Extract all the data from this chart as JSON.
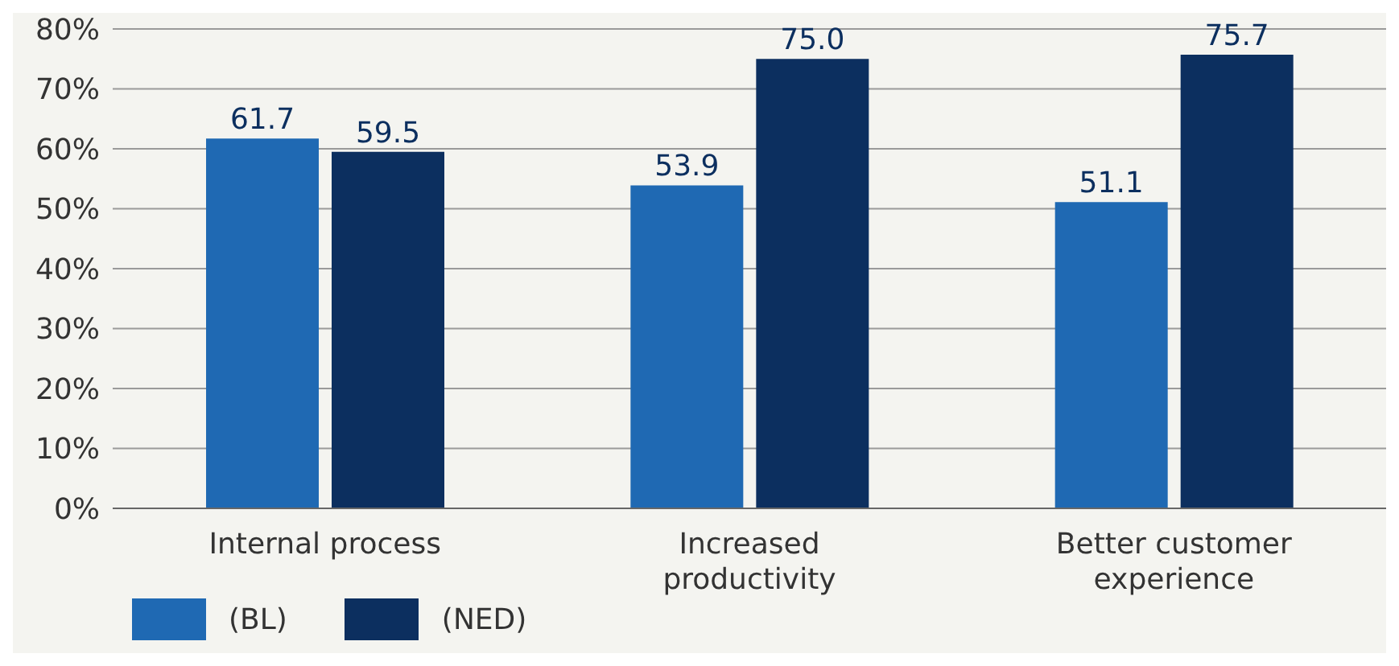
{
  "chart_data": {
    "type": "bar",
    "categories": [
      "Internal process",
      "Increased productivity",
      "Better customer experience"
    ],
    "series": [
      {
        "name": "(BL)",
        "color": "#1f69b3",
        "values": [
          61.7,
          53.9,
          51.1
        ]
      },
      {
        "name": "(NED)",
        "color": "#0c2f5f",
        "values": [
          59.5,
          75.0,
          75.7
        ]
      }
    ],
    "value_labels": [
      [
        "61.7",
        "53.9",
        "51.1"
      ],
      [
        "59.5",
        "75.0",
        "75.7"
      ]
    ],
    "ylim": [
      0,
      80
    ],
    "yticks": [
      {
        "value": 0,
        "label": "0%"
      },
      {
        "value": 10,
        "label": "10%"
      },
      {
        "value": 20,
        "label": "20%"
      },
      {
        "value": 30,
        "label": "30%"
      },
      {
        "value": 40,
        "label": "40%"
      },
      {
        "value": 50,
        "label": "50%"
      },
      {
        "value": 60,
        "label": "60%"
      },
      {
        "value": 70,
        "label": "70%"
      },
      {
        "value": 80,
        "label": "80%"
      }
    ],
    "grid": "y",
    "legend": "bottom"
  }
}
